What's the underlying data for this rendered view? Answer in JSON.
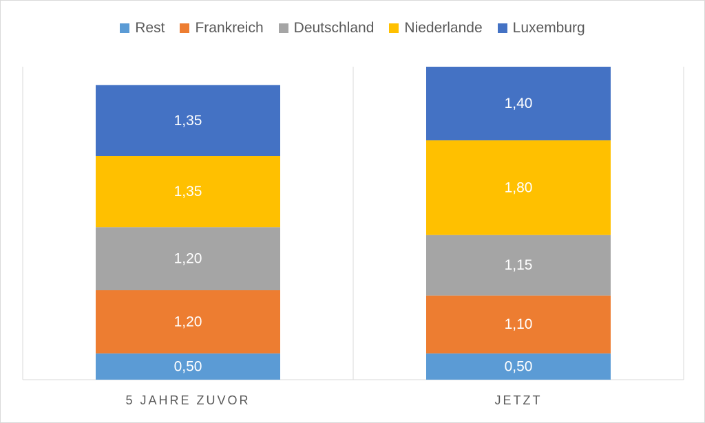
{
  "chart_data": {
    "type": "bar",
    "stacked": true,
    "categories": [
      "5 JAHRE ZUVOR",
      "JETZT"
    ],
    "series": [
      {
        "name": "Rest",
        "values": [
          0.5,
          0.5
        ],
        "labels": [
          "0,50",
          "0,50"
        ],
        "color": "#5b9bd5"
      },
      {
        "name": "Frankreich",
        "values": [
          1.2,
          1.1
        ],
        "labels": [
          "1,20",
          "1,10"
        ],
        "color": "#ed7d31"
      },
      {
        "name": "Deutschland",
        "values": [
          1.2,
          1.15
        ],
        "labels": [
          "1,20",
          "1,15"
        ],
        "color": "#a5a5a5"
      },
      {
        "name": "Niederlande",
        "values": [
          1.35,
          1.8
        ],
        "labels": [
          "1,35",
          "1,80"
        ],
        "color": "#ffc000"
      },
      {
        "name": "Luxemburg",
        "values": [
          1.35,
          1.4
        ],
        "labels": [
          "1,35",
          "1,40"
        ],
        "color": "#4472c4"
      }
    ],
    "title": "",
    "xlabel": "",
    "ylabel": "",
    "legend_position": "top",
    "grid": false
  },
  "legend": {
    "items": [
      {
        "label": "Rest",
        "color": "#5b9bd5"
      },
      {
        "label": "Frankreich",
        "color": "#ed7d31"
      },
      {
        "label": "Deutschland",
        "color": "#a5a5a5"
      },
      {
        "label": "Niederlande",
        "color": "#ffc000"
      },
      {
        "label": "Luxemburg",
        "color": "#4472c4"
      }
    ]
  }
}
